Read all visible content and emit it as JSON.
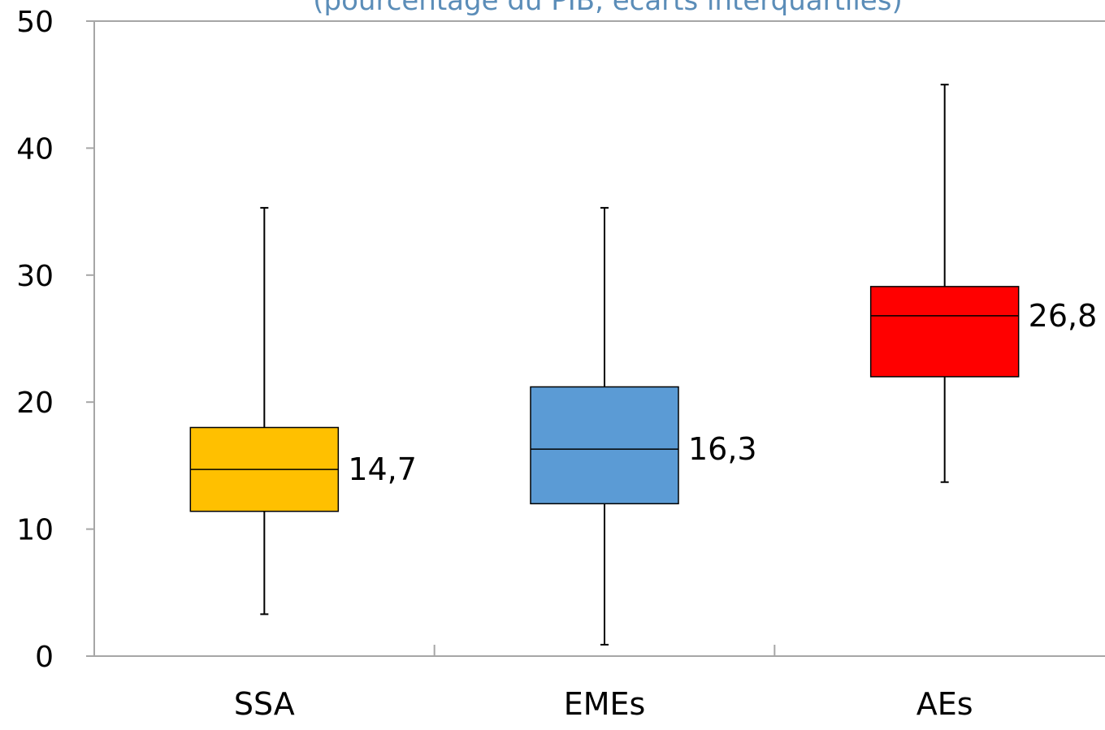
{
  "chart_data": {
    "type": "box",
    "subtitle": "(pourcentage du PIB, écarts interquartiles)",
    "categories": [
      "SSA",
      "EMEs",
      "AEs"
    ],
    "boxes": [
      {
        "category": "SSA",
        "whisker_low": 3.3,
        "q1": 11.4,
        "median": 14.7,
        "q3": 18.0,
        "whisker_high": 35.3,
        "median_label": "14,7",
        "color": "#ffc000"
      },
      {
        "category": "EMEs",
        "whisker_low": 0.9,
        "q1": 12.0,
        "median": 16.3,
        "q3": 21.2,
        "whisker_high": 35.3,
        "median_label": "16,3",
        "color": "#5b9bd5"
      },
      {
        "category": "AEs",
        "whisker_low": 13.7,
        "q1": 22.0,
        "median": 26.8,
        "q3": 29.1,
        "whisker_high": 45.0,
        "median_label": "26,8",
        "color": "#ff0000"
      }
    ],
    "ylim": [
      0,
      50
    ],
    "yticks": [
      0,
      10,
      20,
      30,
      40,
      50
    ],
    "xlabel": "",
    "ylabel": "",
    "grid": false
  }
}
